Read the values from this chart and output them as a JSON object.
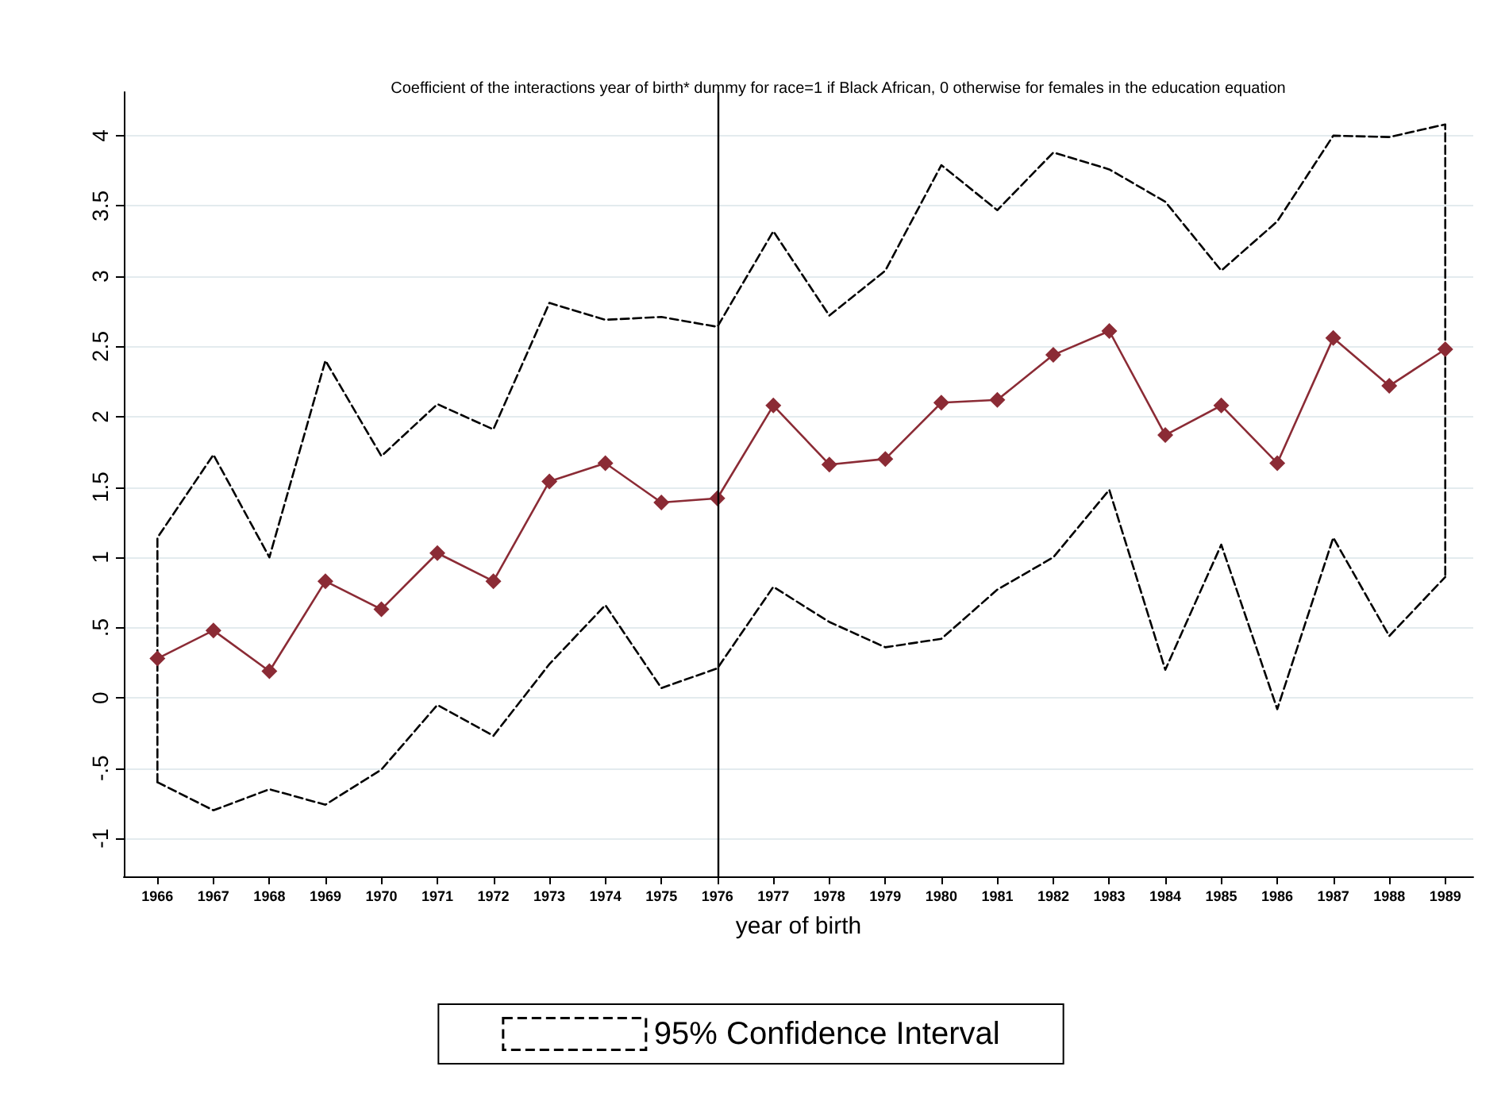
{
  "chart_data": {
    "type": "line",
    "title": "Coefficient of the interactions year of birth* dummy for race=1 if Black African, 0 otherwise for females in the education equation",
    "xlabel": "year of birth",
    "x": [
      1966,
      1967,
      1968,
      1969,
      1970,
      1971,
      1972,
      1973,
      1974,
      1975,
      1976,
      1977,
      1978,
      1979,
      1980,
      1981,
      1982,
      1983,
      1984,
      1985,
      1986,
      1987,
      1988,
      1989
    ],
    "series": [
      {
        "name": "95% Confidence Interval",
        "color": "#000000",
        "line_style": "dashed",
        "marker": "none",
        "x": [
          1966,
          1966,
          1967,
          1968,
          1969,
          1970,
          1971,
          1972,
          1973,
          1974,
          1975,
          1976,
          1977,
          1978,
          1979,
          1980,
          1981,
          1982,
          1983,
          1984,
          1985,
          1986,
          1987,
          1988,
          1989,
          1989
        ],
        "values": [
          -0.6,
          1.14,
          1.73,
          1.0,
          2.4,
          1.72,
          2.09,
          1.91,
          2.81,
          2.69,
          2.71,
          2.64,
          3.32,
          2.72,
          3.04,
          3.79,
          3.47,
          3.88,
          3.76,
          3.53,
          3.04,
          3.39,
          4.0,
          3.99,
          4.08,
          0.86
        ]
      },
      {
        "color": "#000000",
        "line_style": "dashed",
        "marker": "none",
        "values": [
          -0.6,
          -0.8,
          -0.65,
          -0.76,
          -0.51,
          -0.05,
          -0.27,
          0.24,
          0.66,
          0.07,
          0.21,
          0.79,
          0.54,
          0.36,
          0.42,
          0.77,
          1.0,
          1.48,
          0.2,
          1.09,
          -0.08,
          1.14,
          0.44,
          0.86
        ]
      },
      {
        "color": "#8b2b35",
        "line_style": "solid",
        "marker": "diamond",
        "values": [
          0.28,
          0.48,
          0.19,
          0.83,
          0.63,
          1.03,
          0.83,
          1.54,
          1.67,
          1.39,
          1.42,
          2.08,
          1.66,
          1.7,
          2.1,
          2.12,
          2.44,
          2.61,
          1.87,
          2.08,
          1.67,
          2.56,
          2.22,
          2.48
        ]
      }
    ],
    "xlim": [
      1965.4,
      1989.5
    ],
    "xticks": [
      1966,
      1967,
      1968,
      1969,
      1970,
      1971,
      1972,
      1973,
      1974,
      1975,
      1976,
      1977,
      1978,
      1979,
      1980,
      1981,
      1982,
      1983,
      1984,
      1985,
      1986,
      1987,
      1988,
      1989
    ],
    "ylim": [
      -1.27,
      4.31
    ],
    "yticks": [
      {
        "value": -1,
        "label": "-1"
      },
      {
        "value": -0.5,
        "label": "-.5"
      },
      {
        "value": 0,
        "label": "0"
      },
      {
        "value": 0.5,
        "label": ".5"
      },
      {
        "value": 1,
        "label": "1"
      },
      {
        "value": 1.5,
        "label": "1.5"
      },
      {
        "value": 2,
        "label": "2"
      },
      {
        "value": 2.5,
        "label": "2.5"
      },
      {
        "value": 3,
        "label": "3"
      },
      {
        "value": 3.5,
        "label": "3.5"
      },
      {
        "value": 4,
        "label": "4"
      }
    ],
    "grid": "y",
    "legend": "bottom",
    "ref_lines": [
      {
        "axis": "x",
        "value": 1976,
        "color": "#000000",
        "line_style": "solid"
      }
    ]
  }
}
